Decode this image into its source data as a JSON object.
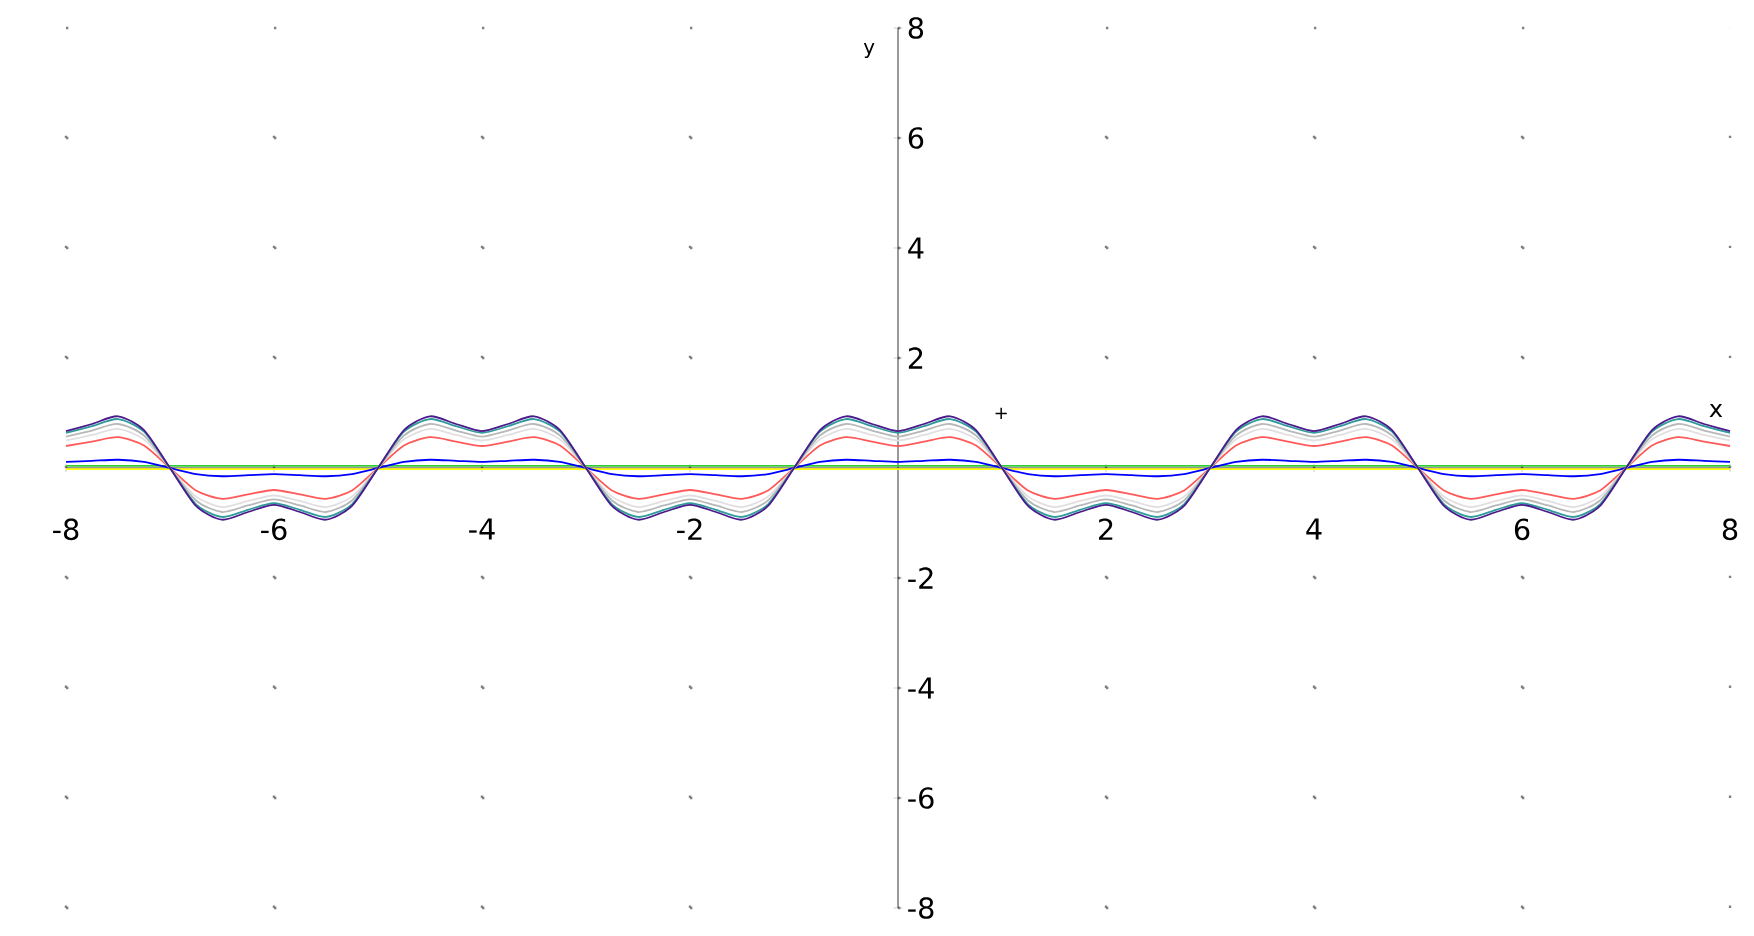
{
  "chart_data": {
    "type": "line",
    "xlabel": "x",
    "ylabel": "y",
    "xlim": [
      -8,
      8
    ],
    "ylim": [
      -8,
      8
    ],
    "xticks": [
      -8,
      -6,
      -4,
      -2,
      2,
      4,
      6,
      8
    ],
    "yticks": [
      -8,
      -6,
      -4,
      -2,
      2,
      4,
      6,
      8
    ],
    "grid": true,
    "annotations": [
      "+"
    ],
    "x": [
      -8,
      -7.75,
      -7.5,
      -7.25,
      -7,
      -6.75,
      -6.5,
      -6.25,
      -6,
      -5.75,
      -5.5,
      -5.25,
      -5,
      -4.75,
      -4.5,
      -4.25,
      -4,
      -3.75,
      -3.5,
      -3.25,
      -3,
      -2.75,
      -2.5,
      -2.25,
      -2,
      -1.75,
      -1.5,
      -1.25,
      -1,
      -0.75,
      -0.5,
      -0.25,
      0,
      0.25,
      0.5,
      0.75,
      1,
      1.25,
      1.5,
      1.75,
      2,
      2.25,
      2.5,
      2.75,
      3,
      3.25,
      3.5,
      3.75,
      4,
      4.25,
      4.5,
      4.75,
      5,
      5.25,
      5.5,
      5.75,
      6,
      6.25,
      6.5,
      6.75,
      7,
      7.25,
      7.5,
      7.75,
      8
    ],
    "series": [
      {
        "color": "#ffff00",
        "values": [
          -0.02,
          -0.02,
          -0.02,
          -0.02,
          -0.02,
          -0.02,
          -0.02,
          -0.02,
          -0.02,
          -0.02,
          -0.02,
          -0.02,
          -0.02,
          -0.02,
          -0.02,
          -0.02,
          -0.02,
          -0.02,
          -0.02,
          -0.02,
          -0.02,
          -0.02,
          -0.02,
          -0.02,
          -0.02,
          -0.02,
          -0.02,
          -0.02,
          -0.02,
          -0.02,
          -0.02,
          -0.02,
          -0.02,
          -0.02,
          -0.02,
          -0.02,
          -0.02,
          -0.02,
          -0.02,
          -0.02,
          -0.02,
          -0.02,
          -0.02,
          -0.02,
          -0.02,
          -0.02,
          -0.02,
          -0.02,
          -0.02,
          -0.02,
          -0.02,
          -0.02,
          -0.02,
          -0.02,
          -0.02,
          -0.02,
          -0.02,
          -0.02,
          -0.02,
          -0.02,
          -0.02,
          -0.02,
          -0.02,
          -0.02,
          -0.02
        ]
      },
      {
        "color": "#33cc33",
        "values": [
          0.04,
          0.04,
          0.04,
          0.04,
          0.04,
          0.04,
          0.04,
          0.04,
          0.04,
          0.04,
          0.04,
          0.04,
          0.04,
          0.04,
          0.04,
          0.04,
          0.04,
          0.04,
          0.04,
          0.04,
          0.04,
          0.04,
          0.04,
          0.04,
          0.04,
          0.04,
          0.04,
          0.04,
          0.04,
          0.04,
          0.04,
          0.04,
          0.04,
          0.04,
          0.04,
          0.04,
          0.04,
          0.04,
          0.04,
          0.04,
          0.04,
          0.04,
          0.04,
          0.04,
          0.04,
          0.04,
          0.04,
          0.04,
          0.04,
          0.04,
          0.04,
          0.04,
          0.04,
          0.04,
          0.04,
          0.04,
          0.04,
          0.04,
          0.04,
          0.04,
          0.04,
          0.04,
          0.04,
          0.04,
          0.04
        ]
      },
      {
        "color": "#0000ff",
        "values": [
          0.11,
          0.13,
          0.15,
          0.11,
          0,
          -0.11,
          -0.15,
          -0.13,
          -0.11,
          -0.13,
          -0.15,
          -0.11,
          0,
          0.11,
          0.15,
          0.13,
          0.11,
          0.13,
          0.15,
          0.11,
          0,
          -0.11,
          -0.15,
          -0.13,
          -0.11,
          -0.13,
          -0.15,
          -0.11,
          0,
          0.11,
          0.15,
          0.13,
          0.11,
          0.13,
          0.15,
          0.11,
          0,
          -0.11,
          -0.15,
          -0.13,
          -0.11,
          -0.13,
          -0.15,
          -0.11,
          0,
          0.11,
          0.15,
          0.13,
          0.11,
          0.13,
          0.15,
          0.11,
          0,
          -0.11,
          -0.15,
          -0.13,
          -0.11,
          -0.13,
          -0.15,
          -0.11,
          0,
          0.11,
          0.15,
          0.13,
          0.11
        ]
      },
      {
        "color": "#ff5a5a",
        "values": [
          0.4,
          0.48,
          0.56,
          0.41,
          0,
          -0.41,
          -0.56,
          -0.48,
          -0.4,
          -0.48,
          -0.56,
          -0.41,
          0,
          0.41,
          0.56,
          0.48,
          0.4,
          0.48,
          0.56,
          0.41,
          0,
          -0.41,
          -0.56,
          -0.48,
          -0.4,
          -0.48,
          -0.56,
          -0.41,
          0,
          0.41,
          0.56,
          0.48,
          0.4,
          0.48,
          0.56,
          0.41,
          0,
          -0.41,
          -0.56,
          -0.48,
          -0.4,
          -0.48,
          -0.56,
          -0.41,
          0,
          0.41,
          0.56,
          0.48,
          0.4,
          0.48,
          0.56,
          0.41,
          0,
          -0.41,
          -0.56,
          -0.48,
          -0.4,
          -0.48,
          -0.56,
          -0.41,
          0,
          0.41,
          0.56,
          0.48,
          0.4
        ]
      },
      {
        "color": "#e0e0e0",
        "values": [
          0.5,
          0.6,
          0.71,
          0.52,
          0,
          -0.52,
          -0.71,
          -0.6,
          -0.5,
          -0.6,
          -0.71,
          -0.52,
          0,
          0.52,
          0.71,
          0.6,
          0.5,
          0.6,
          0.71,
          0.52,
          0,
          -0.52,
          -0.71,
          -0.6,
          -0.5,
          -0.6,
          -0.71,
          -0.52,
          0,
          0.52,
          0.71,
          0.6,
          0.5,
          0.6,
          0.71,
          0.52,
          0,
          -0.52,
          -0.71,
          -0.6,
          -0.5,
          -0.6,
          -0.71,
          -0.52,
          0,
          0.52,
          0.71,
          0.6,
          0.5,
          0.6,
          0.71,
          0.52,
          0,
          -0.52,
          -0.71,
          -0.6,
          -0.5,
          -0.6,
          -0.71,
          -0.52,
          0,
          0.52,
          0.71,
          0.6,
          0.5
        ]
      },
      {
        "color": "#b8b8b8",
        "values": [
          0.57,
          0.68,
          0.8,
          0.59,
          0,
          -0.59,
          -0.8,
          -0.68,
          -0.57,
          -0.68,
          -0.8,
          -0.59,
          0,
          0.59,
          0.8,
          0.68,
          0.57,
          0.68,
          0.8,
          0.59,
          0,
          -0.59,
          -0.8,
          -0.68,
          -0.57,
          -0.68,
          -0.8,
          -0.59,
          0,
          0.59,
          0.8,
          0.68,
          0.57,
          0.68,
          0.8,
          0.59,
          0,
          -0.59,
          -0.8,
          -0.68,
          -0.57,
          -0.68,
          -0.8,
          -0.59,
          0,
          0.59,
          0.8,
          0.68,
          0.57,
          0.68,
          0.8,
          0.59,
          0,
          -0.59,
          -0.8,
          -0.68,
          -0.57,
          -0.68,
          -0.8,
          -0.59,
          0,
          0.59,
          0.8,
          0.68,
          0.57
        ]
      },
      {
        "color": "#2e9a9a",
        "values": [
          0.64,
          0.76,
          0.89,
          0.66,
          0,
          -0.66,
          -0.89,
          -0.76,
          -0.64,
          -0.76,
          -0.89,
          -0.66,
          0,
          0.66,
          0.89,
          0.76,
          0.64,
          0.76,
          0.89,
          0.66,
          0,
          -0.66,
          -0.89,
          -0.76,
          -0.64,
          -0.76,
          -0.89,
          -0.66,
          0,
          0.66,
          0.89,
          0.76,
          0.64,
          0.76,
          0.89,
          0.66,
          0,
          -0.66,
          -0.89,
          -0.76,
          -0.64,
          -0.76,
          -0.89,
          -0.66,
          0,
          0.66,
          0.89,
          0.76,
          0.64,
          0.76,
          0.89,
          0.66,
          0,
          -0.66,
          -0.89,
          -0.76,
          -0.64,
          -0.76,
          -0.89,
          -0.66,
          0,
          0.66,
          0.89,
          0.76,
          0.64
        ]
      },
      {
        "color": "#4b1a8c",
        "values": [
          0.67,
          0.8,
          0.94,
          0.69,
          0,
          -0.69,
          -0.94,
          -0.8,
          -0.67,
          -0.8,
          -0.94,
          -0.69,
          0,
          0.69,
          0.94,
          0.8,
          0.67,
          0.8,
          0.94,
          0.69,
          0,
          -0.69,
          -0.94,
          -0.8,
          -0.67,
          -0.8,
          -0.94,
          -0.69,
          0,
          0.69,
          0.94,
          0.8,
          0.67,
          0.8,
          0.94,
          0.69,
          0,
          -0.69,
          -0.94,
          -0.8,
          -0.67,
          -0.8,
          -0.94,
          -0.69,
          0,
          0.69,
          0.94,
          0.8,
          0.67,
          0.8,
          0.94,
          0.69,
          0,
          -0.69,
          -0.94,
          -0.8,
          -0.67,
          -0.8,
          -0.94,
          -0.69,
          0,
          0.69,
          0.94,
          0.8,
          0.67
        ]
      }
    ]
  }
}
